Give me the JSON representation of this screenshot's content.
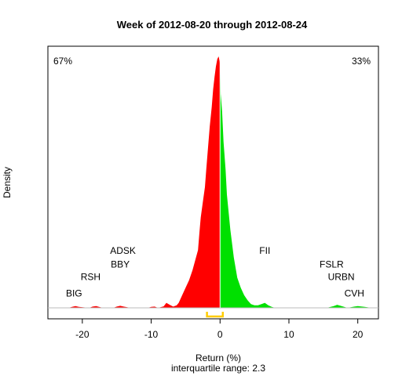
{
  "chart_data": {
    "type": "area",
    "title": "Week of 2012-08-20 through 2012-08-24",
    "xlabel": "Return (%)",
    "ylabel": "Density",
    "subtitle": "interquartile range: 2.3",
    "xlim": [
      -25,
      23
    ],
    "xticks": [
      -20,
      -10,
      0,
      10,
      20
    ],
    "grid": false,
    "pct_negative": "67%",
    "pct_positive": "33%",
    "colors": {
      "negative": "#ff0000",
      "positive": "#00e000",
      "iqr": "#ffcc00",
      "neg_text": "#ff0000",
      "pos_text": "#009900"
    },
    "iqr": [
      -1.9,
      0.4
    ],
    "series": [
      {
        "x": [
          -24,
          -22,
          -21.5,
          -21,
          -20.5,
          -19,
          -18.5,
          -18,
          -17,
          -15.5,
          -15,
          -14.5,
          -14,
          -13,
          -10.5,
          -10,
          -9.5,
          -9,
          -8.2,
          -7.8,
          -7.3,
          -6.8,
          -6.3,
          -6,
          -5.5,
          -5,
          -4.5,
          -4,
          -3.5,
          -3.2,
          -3,
          -2.8,
          -2.5,
          -2.2,
          -2,
          -1.8,
          -1.5,
          -1.2,
          -1,
          -0.8,
          -0.6,
          -0.4,
          -0.2,
          0,
          0.1,
          0.3,
          0.5,
          0.8,
          1,
          1.5,
          2,
          2.5,
          3,
          3.5,
          4,
          4.5,
          5,
          5.5,
          6,
          6.5,
          7,
          7.5,
          8,
          15.5,
          16.5,
          17,
          17.5,
          18.5,
          19.5,
          20,
          21,
          22
        ],
        "y": [
          0,
          0,
          0.004,
          0.007,
          0.004,
          0,
          0.005,
          0.007,
          0,
          0,
          0.005,
          0.008,
          0.005,
          0,
          0,
          0.004,
          0.005,
          0,
          0.006,
          0.02,
          0.012,
          0.005,
          0.01,
          0.02,
          0.05,
          0.08,
          0.11,
          0.15,
          0.2,
          0.23,
          0.3,
          0.36,
          0.42,
          0.48,
          0.55,
          0.62,
          0.72,
          0.8,
          0.87,
          0.92,
          0.96,
          0.99,
          1.0,
          0.97,
          0.85,
          0.78,
          0.66,
          0.55,
          0.45,
          0.31,
          0.2,
          0.12,
          0.08,
          0.05,
          0.03,
          0.015,
          0.01,
          0.01,
          0.015,
          0.02,
          0.01,
          0.004,
          0,
          0,
          0.007,
          0.012,
          0.008,
          0,
          0.005,
          0.007,
          0.004,
          0
        ]
      }
    ],
    "annotations": [
      {
        "text": "BIG",
        "x": -21.2,
        "y": 0.045
      },
      {
        "text": "RSH",
        "x": -18.8,
        "y": 0.11
      },
      {
        "text": "BBY",
        "x": -14.5,
        "y": 0.16
      },
      {
        "text": "ADSK",
        "x": -14.1,
        "y": 0.215
      },
      {
        "text": "FII",
        "x": 6.5,
        "y": 0.215
      },
      {
        "text": "FSLR",
        "x": 16.2,
        "y": 0.16
      },
      {
        "text": "URBN",
        "x": 17.6,
        "y": 0.11
      },
      {
        "text": "CVH",
        "x": 19.5,
        "y": 0.045
      }
    ]
  }
}
